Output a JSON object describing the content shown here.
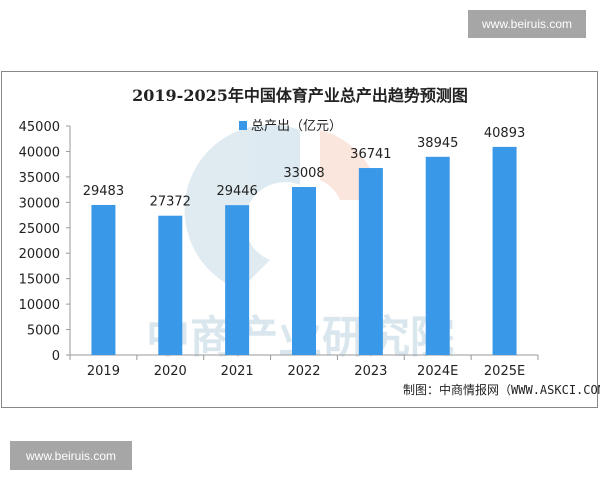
{
  "watermarks": {
    "top_right": "www.beiruis.com",
    "bottom_left": "www.beiruis.com",
    "chart_watermark": "中商产业研究院"
  },
  "chart_data": {
    "type": "bar",
    "title": "2019-2025年中国体育产业总产出趋势预测图",
    "categories": [
      "2019",
      "2020",
      "2021",
      "2022",
      "2023",
      "2024E",
      "2025E"
    ],
    "series": [
      {
        "name": "总产出（亿元）",
        "values": [
          29483,
          27372,
          29446,
          33008,
          36741,
          38945,
          40893
        ],
        "color": "#3a98e8"
      }
    ],
    "data_labels": [
      "29483",
      "27372",
      "29446",
      "33008",
      "36741",
      "38945",
      "40893"
    ],
    "ylim": [
      0,
      45000
    ],
    "yticks": [
      "0",
      "5000",
      "10000",
      "15000",
      "20000",
      "25000",
      "30000",
      "35000",
      "40000",
      "45000"
    ],
    "grid": false,
    "legend": "top-center",
    "source": "制图：中商情报网（WWW.ASKCI.COM）"
  }
}
